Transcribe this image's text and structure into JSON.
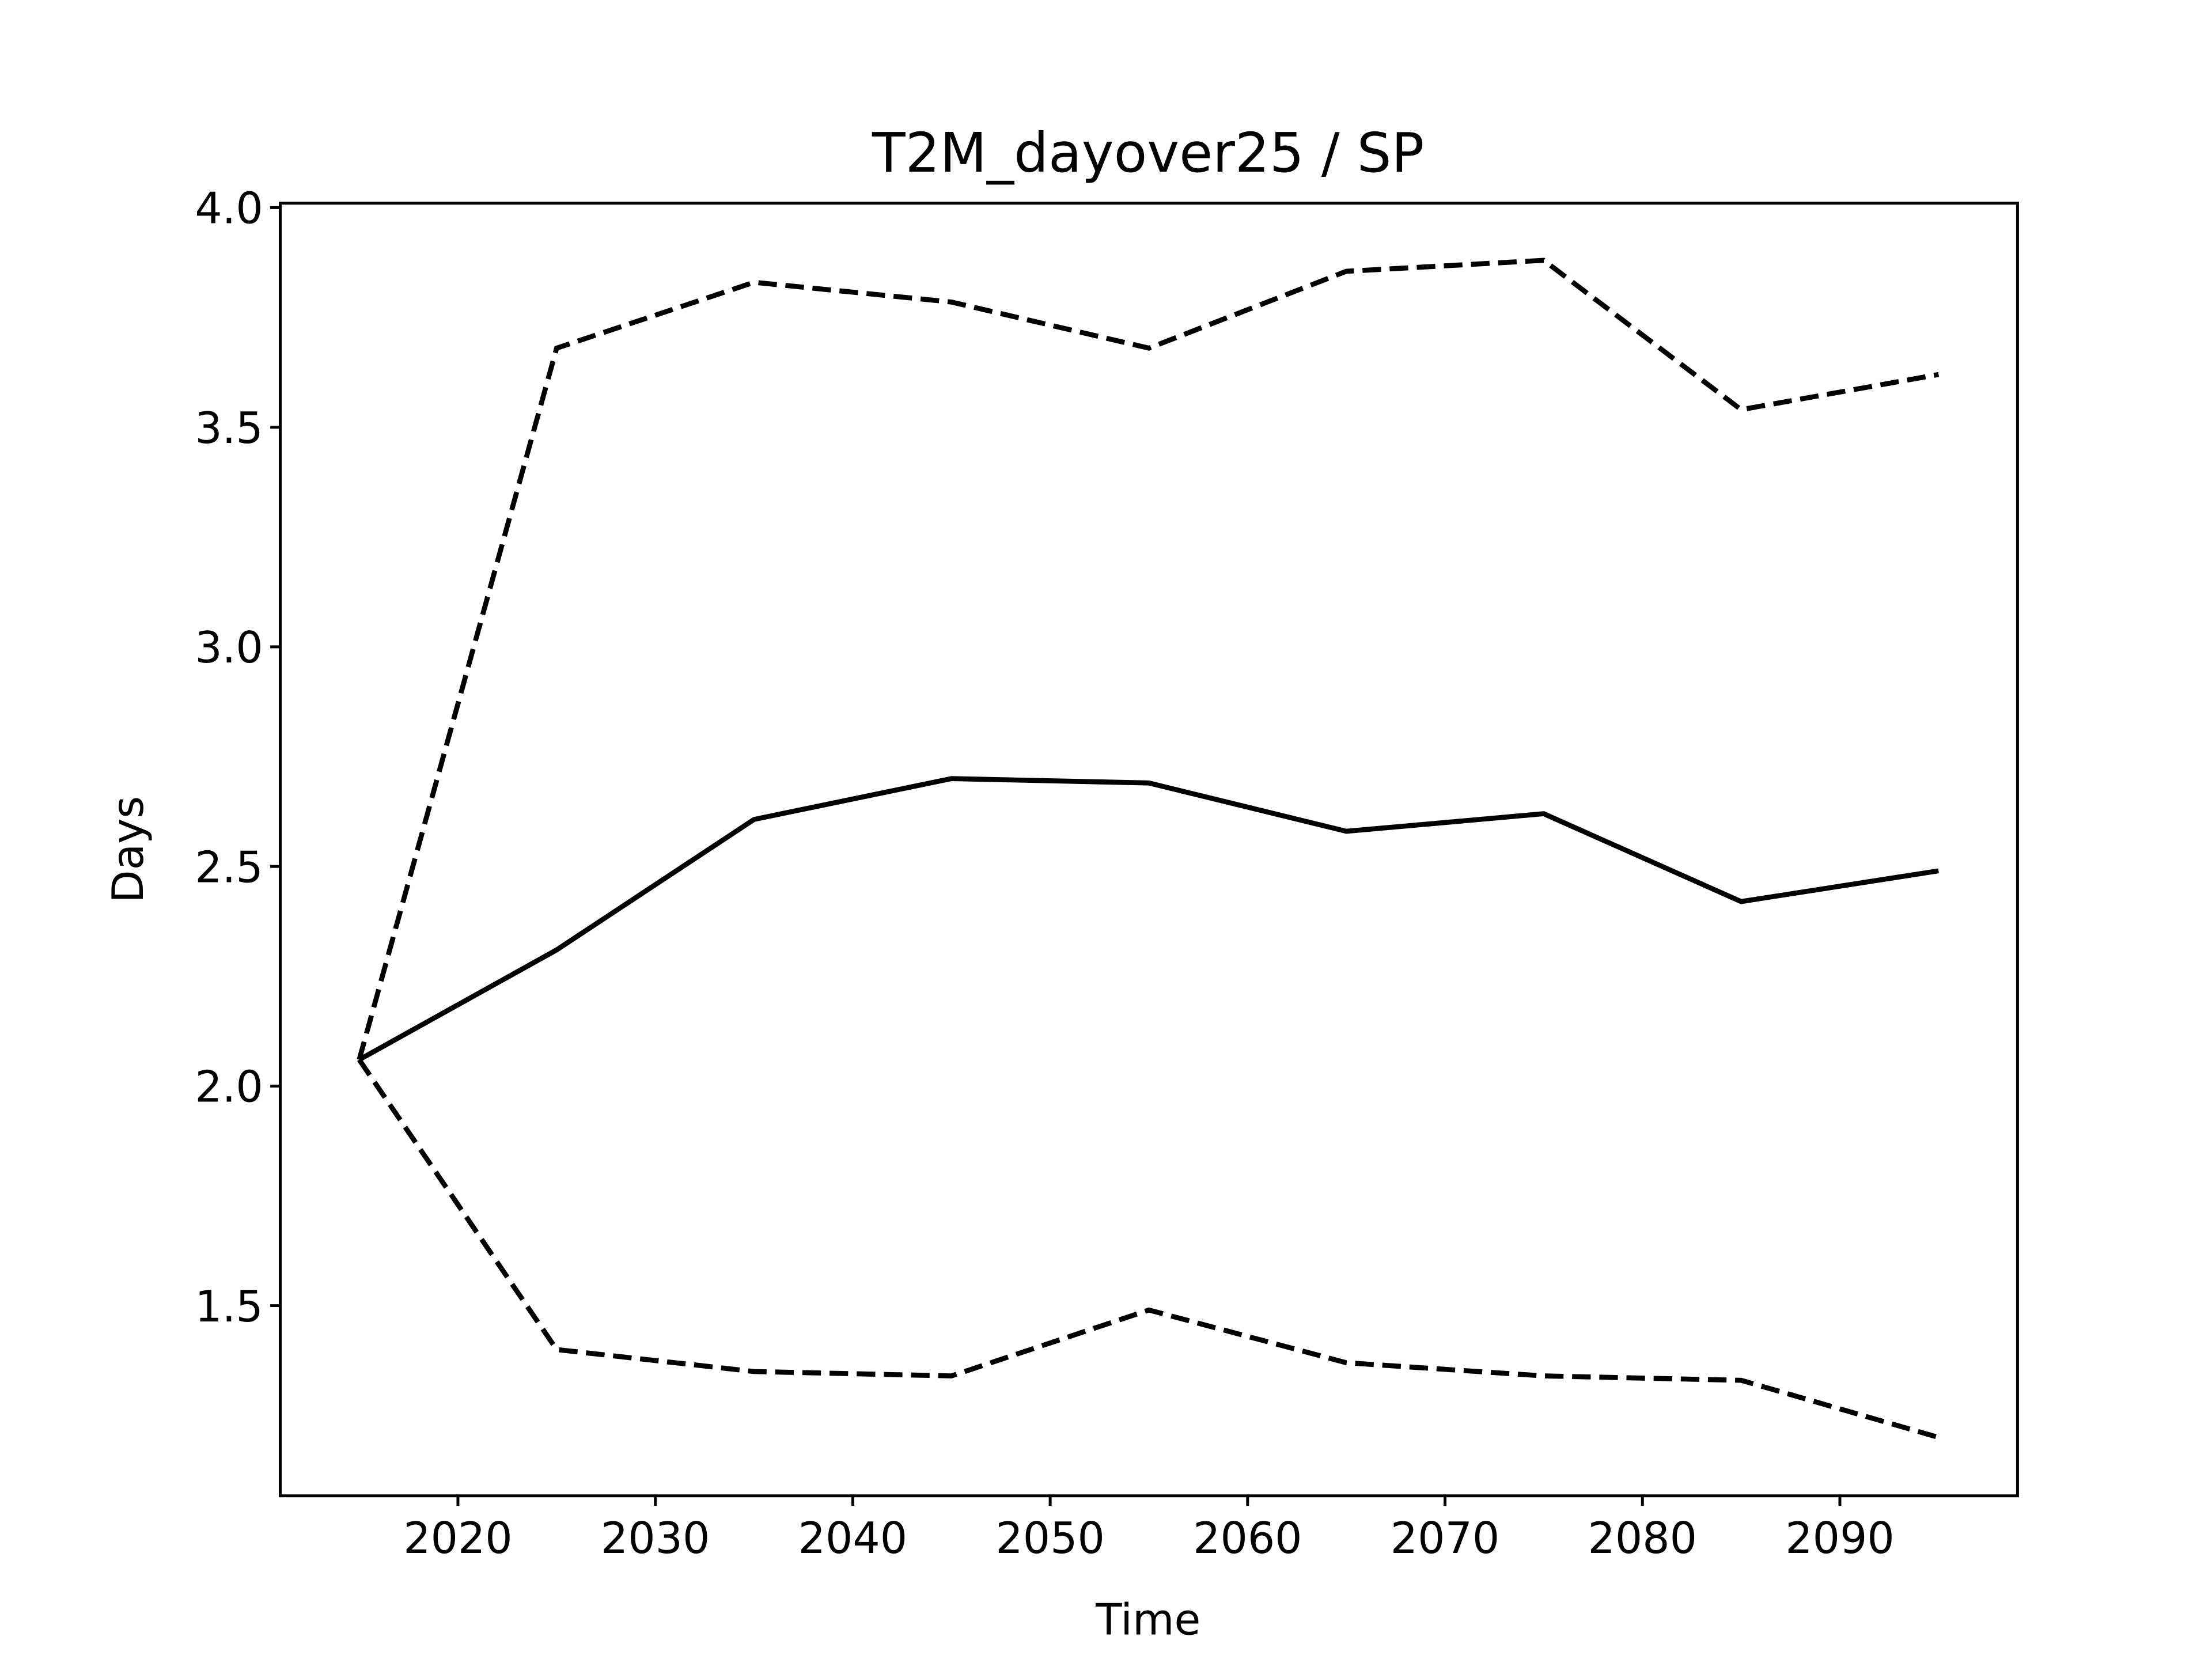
{
  "chart_data": {
    "type": "line",
    "title": "T2M_dayover25 / SP",
    "xlabel": "Time",
    "ylabel": "Days",
    "x": [
      2015,
      2025,
      2035,
      2045,
      2055,
      2065,
      2075,
      2085,
      2095
    ],
    "series": [
      {
        "color": "#000000",
        "linestyle": "dashed",
        "values": [
          2.06,
          3.68,
          3.83,
          3.785,
          3.68,
          3.855,
          3.88,
          3.54,
          3.62
        ]
      },
      {
        "color": "#000000",
        "linestyle": "solid",
        "values": [
          2.06,
          2.31,
          2.607,
          2.7,
          2.69,
          2.58,
          2.62,
          2.42,
          2.49
        ]
      },
      {
        "color": "#000000",
        "linestyle": "dashed",
        "values": [
          2.06,
          1.4,
          1.35,
          1.34,
          1.49,
          1.37,
          1.34,
          1.33,
          1.2
        ]
      }
    ],
    "xlim": [
      2011,
      2099
    ],
    "xticks": [
      2020,
      2030,
      2040,
      2050,
      2060,
      2070,
      2080,
      2090
    ],
    "ylim": [
      1.067,
      4.01
    ],
    "yticks": [
      {
        "value": 1.5,
        "label": "1.5"
      },
      {
        "value": 2,
        "label": "2.0"
      },
      2.5,
      {
        "value": 3,
        "label": "3.0"
      },
      3.5,
      {
        "value": 4,
        "label": "4.0"
      }
    ]
  }
}
